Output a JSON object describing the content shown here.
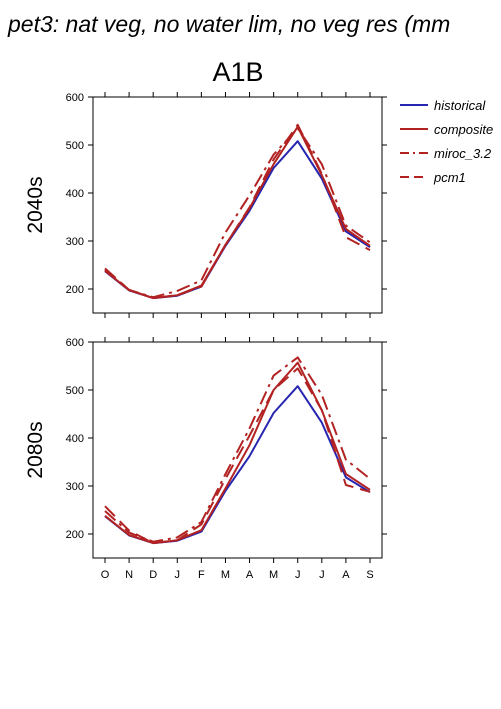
{
  "title": "pet3: nat veg, no water lim, no veg res (mm",
  "scenario": "A1B",
  "chart_data": [
    {
      "type": "line",
      "panel_label": "2040s",
      "categories": [
        "O",
        "N",
        "D",
        "J",
        "F",
        "M",
        "A",
        "M",
        "J",
        "J",
        "A",
        "S"
      ],
      "ylim": [
        150,
        600
      ],
      "yticks": [
        200,
        300,
        400,
        500,
        600
      ],
      "series": [
        {
          "name": "historical",
          "color": "#2626b0",
          "dash": "solid",
          "values": [
            237,
            197,
            181,
            186,
            205,
            290,
            363,
            452,
            508,
            430,
            320,
            287
          ]
        },
        {
          "name": "composite",
          "color": "#b22222",
          "dash": "solid",
          "values": [
            238,
            198,
            181,
            187,
            207,
            292,
            368,
            460,
            538,
            437,
            325,
            290
          ]
        },
        {
          "name": "miroc_3.2",
          "color": "#b22222",
          "dash": "dashdot",
          "values": [
            240,
            198,
            183,
            196,
            218,
            318,
            395,
            480,
            535,
            460,
            332,
            297
          ]
        },
        {
          "name": "pcm1",
          "color": "#b22222",
          "dash": "dash",
          "values": [
            243,
            198,
            181,
            187,
            205,
            292,
            370,
            470,
            542,
            440,
            308,
            281
          ]
        }
      ]
    },
    {
      "type": "line",
      "panel_label": "2080s",
      "categories": [
        "O",
        "N",
        "D",
        "J",
        "F",
        "M",
        "A",
        "M",
        "J",
        "J",
        "A",
        "S"
      ],
      "ylim": [
        150,
        600
      ],
      "yticks": [
        200,
        300,
        400,
        500,
        600
      ],
      "series": [
        {
          "name": "historical",
          "color": "#2626b0",
          "dash": "solid",
          "values": [
            237,
            197,
            181,
            186,
            205,
            290,
            362,
            452,
            508,
            432,
            318,
            287
          ]
        },
        {
          "name": "composite",
          "color": "#b22222",
          "dash": "solid",
          "values": [
            238,
            198,
            181,
            187,
            208,
            295,
            385,
            500,
            557,
            458,
            325,
            292
          ]
        },
        {
          "name": "miroc_3.2",
          "color": "#b22222",
          "dash": "dashdot",
          "values": [
            248,
            203,
            184,
            193,
            225,
            325,
            420,
            530,
            568,
            490,
            355,
            315
          ]
        },
        {
          "name": "pcm1",
          "color": "#b22222",
          "dash": "dash",
          "values": [
            258,
            207,
            181,
            187,
            220,
            315,
            405,
            500,
            545,
            458,
            302,
            288
          ]
        }
      ]
    }
  ],
  "legend": {
    "position": "right",
    "items": [
      {
        "label": "historical",
        "color": "#2626b0",
        "dash": "solid"
      },
      {
        "label": "composite",
        "color": "#b22222",
        "dash": "solid"
      },
      {
        "label": "miroc_3.2",
        "color": "#b22222",
        "dash": "dashdot"
      },
      {
        "label": "pcm1",
        "color": "#b22222",
        "dash": "dash"
      }
    ]
  }
}
